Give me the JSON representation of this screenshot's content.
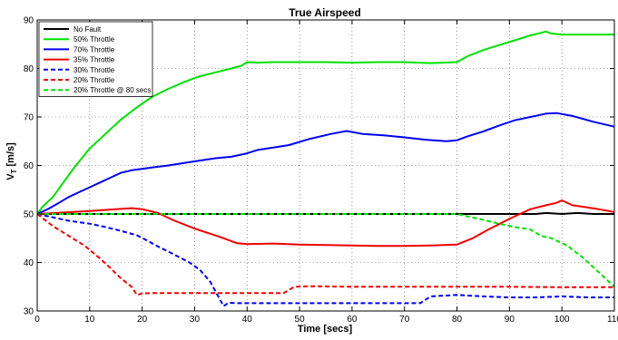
{
  "chart_data": {
    "type": "line",
    "title": "True Airspeed",
    "xlabel": "Time [secs]",
    "ylabel_main": "V",
    "ylabel_sub": "T",
    "ylabel_unit": " [m/s]",
    "xlim": [
      0,
      110
    ],
    "ylim": [
      30,
      90
    ],
    "xticks": [
      0,
      10,
      20,
      30,
      40,
      50,
      60,
      70,
      80,
      90,
      100,
      110
    ],
    "yticks": [
      30,
      40,
      50,
      60,
      70,
      80,
      90
    ],
    "grid": true,
    "legend_position": "top-left",
    "series": [
      {
        "name": "No Fault",
        "color": "#000000",
        "dash": "solid",
        "x": [
          0,
          20,
          40,
          60,
          80,
          95,
          97,
          100,
          103,
          106,
          110
        ],
        "y": [
          50,
          50,
          50,
          50,
          50,
          50,
          50.2,
          50,
          50.2,
          50,
          50
        ]
      },
      {
        "name": "50% Throttle",
        "color": "#00e000",
        "dash": "solid",
        "x": [
          0,
          1,
          3,
          5,
          7,
          10,
          13,
          16,
          19,
          22,
          25,
          28,
          31,
          34,
          37,
          39,
          40,
          42,
          45,
          50,
          55,
          60,
          65,
          70,
          75,
          80,
          82,
          85,
          88,
          91,
          94,
          97,
          98,
          100,
          105,
          110
        ],
        "y": [
          50,
          51.5,
          53.5,
          56.5,
          59.5,
          63.5,
          66.5,
          69.5,
          72,
          74.2,
          75.8,
          77.2,
          78.4,
          79.2,
          80,
          80.6,
          81.3,
          81.2,
          81.3,
          81.3,
          81.3,
          81.2,
          81.3,
          81.3,
          81.1,
          81.3,
          82.5,
          83.8,
          84.8,
          85.8,
          86.8,
          87.6,
          87.2,
          87,
          87,
          87
        ]
      },
      {
        "name": "70% Throttle",
        "color": "#0000ee",
        "dash": "solid",
        "x": [
          0,
          2,
          4,
          6,
          8,
          10,
          12,
          14,
          16,
          18,
          20,
          22,
          25,
          28,
          31,
          34,
          37,
          40,
          42,
          45,
          48,
          52,
          56,
          59,
          62,
          66,
          70,
          74,
          78,
          80,
          82,
          85,
          88,
          91,
          94,
          97,
          99,
          102,
          106,
          110
        ],
        "y": [
          50,
          51,
          52.2,
          53.5,
          54.5,
          55.5,
          56.5,
          57.5,
          58.5,
          59,
          59.3,
          59.6,
          60,
          60.5,
          61,
          61.5,
          61.8,
          62.5,
          63.2,
          63.7,
          64.2,
          65.5,
          66.5,
          67.1,
          66.5,
          66.2,
          65.8,
          65.3,
          65,
          65.2,
          66,
          67,
          68.2,
          69.3,
          70,
          70.7,
          70.8,
          70.2,
          69,
          68
        ]
      },
      {
        "name": "35% Throttle",
        "color": "#ee0000",
        "dash": "solid",
        "x": [
          0,
          5,
          10,
          15,
          18,
          20,
          23,
          26,
          30,
          35,
          38,
          40,
          45,
          50,
          55,
          60,
          65,
          70,
          75,
          80,
          83,
          86,
          90,
          94,
          97,
          99,
          100,
          102,
          104,
          107,
          110
        ],
        "y": [
          50,
          50.3,
          50.6,
          51,
          51.2,
          51,
          50.2,
          48.7,
          47,
          45.2,
          44,
          43.8,
          43.9,
          43.7,
          43.6,
          43.5,
          43.4,
          43.4,
          43.5,
          43.7,
          45,
          46.8,
          49,
          51,
          51.8,
          52.3,
          52.8,
          51.8,
          51.5,
          51,
          50.4
        ]
      },
      {
        "name": "30% Throttle",
        "color": "#0000ee",
        "dash": "dash",
        "x": [
          0,
          3,
          6,
          10,
          13,
          16,
          19,
          21,
          23,
          26,
          29,
          31,
          33,
          34.5,
          35.5,
          36.5,
          38,
          45,
          55,
          65,
          73,
          75,
          80,
          85,
          90,
          95,
          100,
          105,
          110
        ],
        "y": [
          50,
          49.3,
          48.6,
          48,
          47.3,
          46.5,
          45.6,
          44.5,
          43.3,
          41.7,
          40,
          38.5,
          36,
          33,
          31,
          31.7,
          31.6,
          31.6,
          31.6,
          31.6,
          31.6,
          33,
          33.3,
          33,
          32.8,
          32.8,
          33,
          32.8,
          32.8
        ]
      },
      {
        "name": "20% Throttle",
        "color": "#ee0000",
        "dash": "dash",
        "x": [
          0,
          3,
          6,
          9,
          12,
          14,
          16,
          18,
          19,
          20,
          22,
          30,
          40,
          47,
          49,
          52,
          60,
          70,
          80,
          90,
          100,
          110
        ],
        "y": [
          50,
          47.5,
          45.5,
          43.5,
          40.8,
          38.8,
          36.7,
          35,
          33.3,
          33.6,
          33.7,
          33.7,
          33.7,
          33.7,
          35,
          35.1,
          35,
          35,
          35,
          35,
          34.9,
          34.9
        ]
      },
      {
        "name": "20% Throttle @ 80 secs",
        "color": "#00e000",
        "dash": "dash",
        "x": [
          0,
          20,
          40,
          60,
          80,
          82,
          85,
          88,
          91,
          94,
          96,
          98,
          101,
          104,
          107,
          110
        ],
        "y": [
          50,
          50,
          50,
          50,
          50,
          49.5,
          48.8,
          48,
          47.3,
          46.8,
          45.5,
          45,
          43.5,
          41,
          38,
          35
        ]
      }
    ]
  }
}
